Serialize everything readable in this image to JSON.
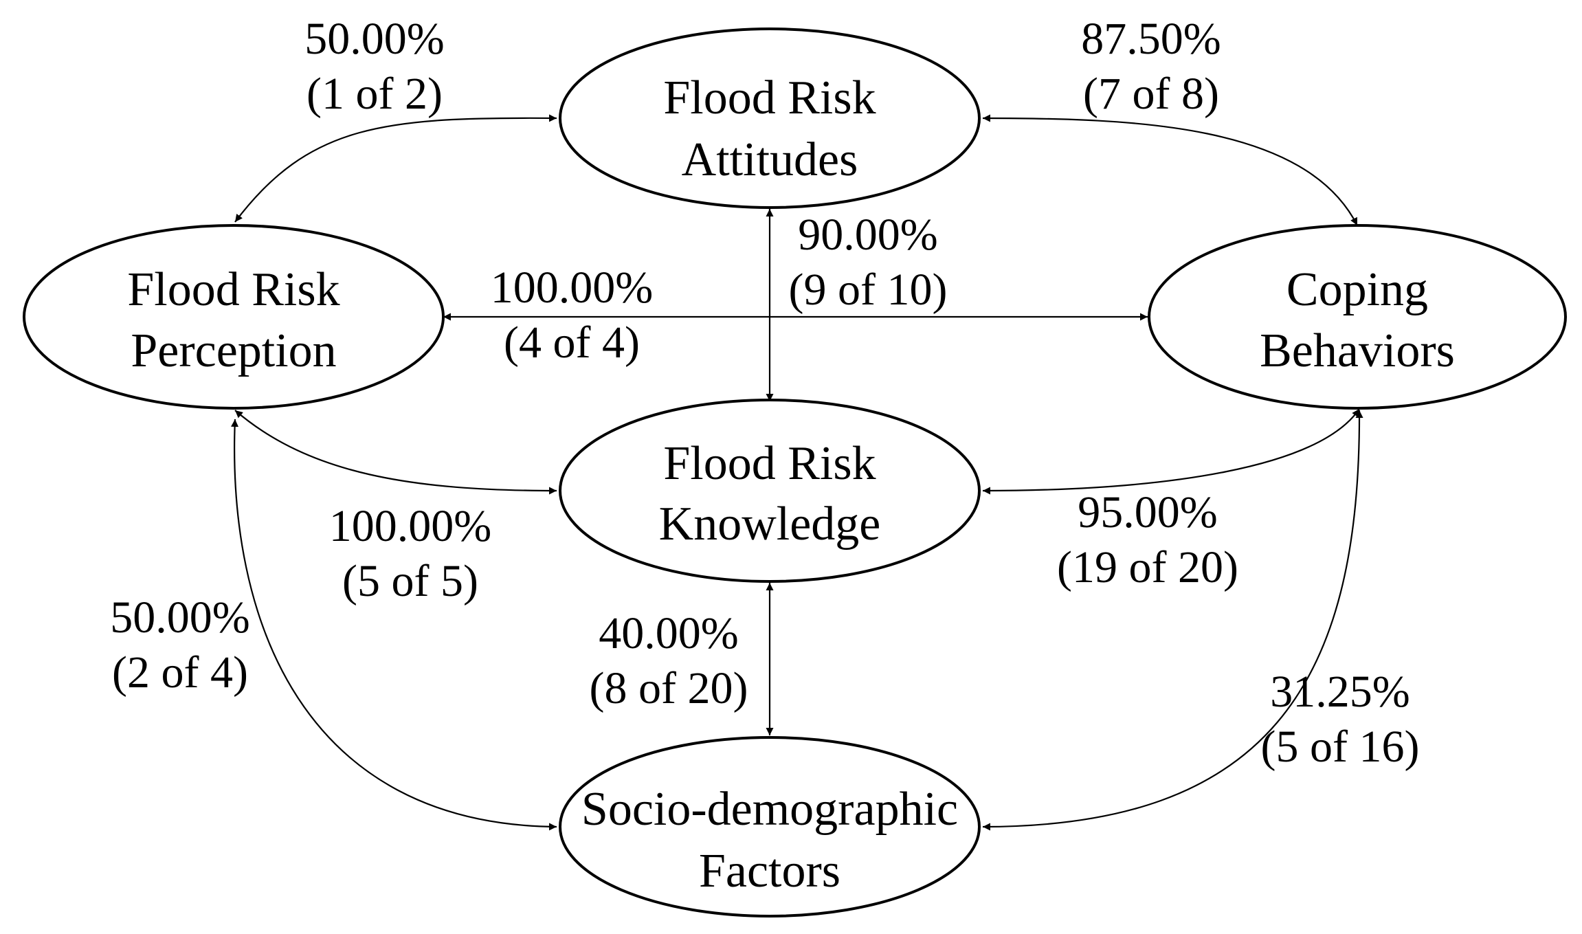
{
  "nodes": {
    "attitudes": {
      "line1": "Flood Risk",
      "line2": "Attitudes"
    },
    "perception": {
      "line1": "Flood Risk",
      "line2": "Perception"
    },
    "coping": {
      "line1": "Coping",
      "line2": "Behaviors"
    },
    "knowledge": {
      "line1": "Flood Risk",
      "line2": "Knowledge"
    },
    "socio": {
      "line1": "Socio-demographic",
      "line2": "Factors"
    }
  },
  "edges": {
    "perception_attitudes": {
      "percent": "50.00%",
      "count": "(1 of 2)"
    },
    "attitudes_coping": {
      "percent": "87.50%",
      "count": "(7 of 8)"
    },
    "attitudes_knowledge": {
      "percent": "90.00%",
      "count": "(9 of 10)"
    },
    "perception_coping": {
      "percent": "100.00%",
      "count": "(4 of 4)"
    },
    "perception_knowledge": {
      "percent": "100.00%",
      "count": "(5 of 5)"
    },
    "knowledge_coping": {
      "percent": "95.00%",
      "count": "(19 of 20)"
    },
    "perception_socio": {
      "percent": "50.00%",
      "count": "(2 of 4)"
    },
    "knowledge_socio": {
      "percent": "40.00%",
      "count": "(8 of 20)"
    },
    "coping_socio": {
      "percent": "31.25%",
      "count": "(5 of 16)"
    }
  }
}
